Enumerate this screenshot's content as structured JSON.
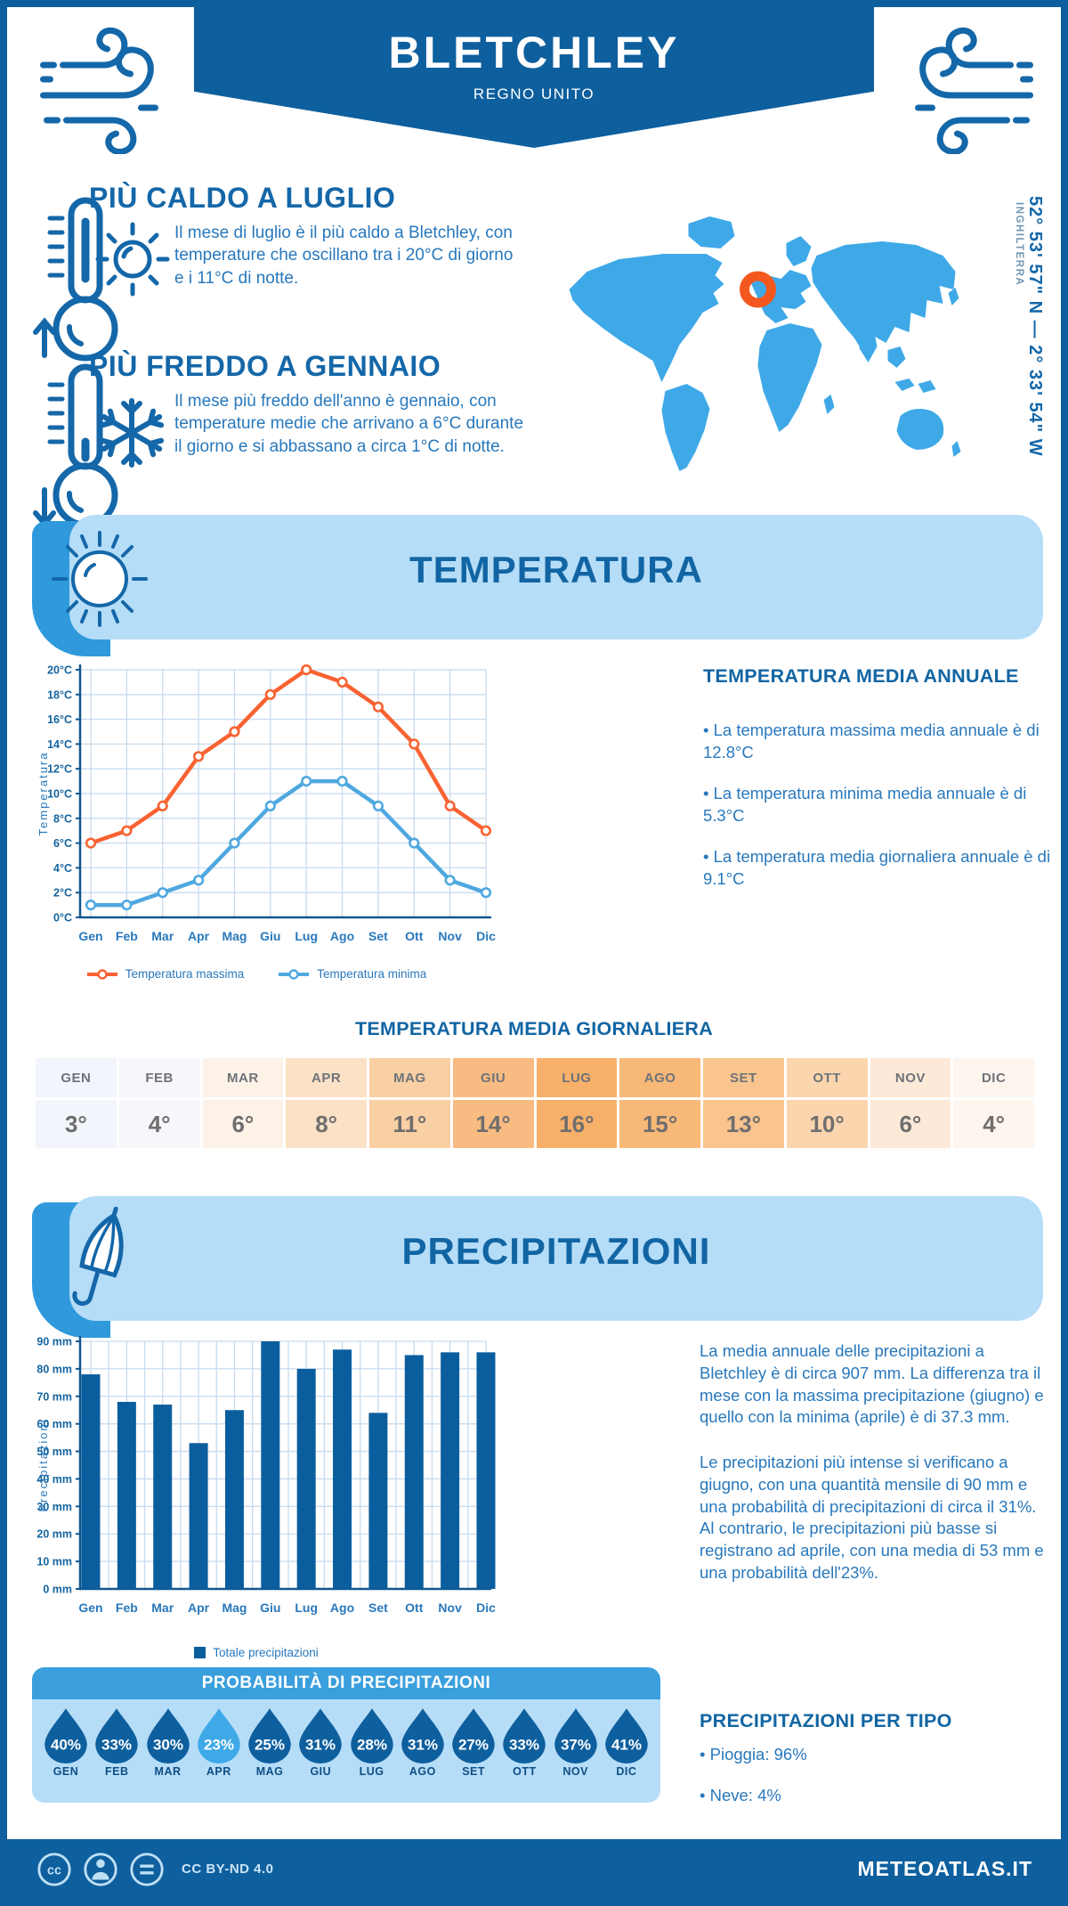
{
  "page": {
    "title": "BLETCHLEY",
    "subtitle": "REGNO UNITO",
    "coordinates": "52° 53' 57\" N — 2° 33' 54\" W",
    "region_label": "INGHILTERRA",
    "footer": {
      "license": "CC BY-ND 4.0",
      "site": "METEOATLAS.IT"
    }
  },
  "colors": {
    "dark_blue": "#0E5F9E",
    "heading_blue": "#1467A8",
    "text_blue": "#2878BC",
    "grid_blue": "#C7DBEE",
    "axis_blue": "#11578F",
    "tick_blue": "#15649F",
    "map_blue": "#3FA9E8",
    "marker_orange": "#F4581F"
  },
  "highlights": {
    "warm": {
      "title": "PIÙ CALDO A LUGLIO",
      "text": "Il mese di luglio è il più caldo a Bletchley, con temperature che oscillano tra i 20°C di giorno e i 11°C di notte."
    },
    "cold": {
      "title": "PIÙ FREDDO A GENNAIO",
      "text": "Il mese più freddo dell'anno è gennaio, con temperature medie che arrivano a 6°C durante il giorno e si abbassano a circa 1°C di notte."
    }
  },
  "temperature_section": {
    "banner_title": "TEMPERATURA",
    "annual": {
      "title": "TEMPERATURA MEDIA ANNUALE",
      "bullets": [
        "La temperatura massima media annuale è di 12.8°C",
        "La temperatura minima media annuale è di 5.3°C",
        "La temperatura media giornaliera annuale è di 9.1°C"
      ]
    },
    "daily_title": "TEMPERATURA MEDIA GIORNALIERA",
    "monthly_avg": {
      "months": [
        "GEN",
        "FEB",
        "MAR",
        "APR",
        "MAG",
        "GIU",
        "LUG",
        "AGO",
        "SET",
        "OTT",
        "NOV",
        "DIC"
      ],
      "values": [
        "3°",
        "4°",
        "6°",
        "8°",
        "11°",
        "14°",
        "16°",
        "15°",
        "13°",
        "10°",
        "6°",
        "4°"
      ],
      "cell_colors": [
        "#F2F5FB",
        "#F7F6FA",
        "#FDF2E8",
        "#FBE2C6",
        "#F9CFA4",
        "#F8BC82",
        "#F7B069",
        "#F8B878",
        "#F9C48E",
        "#FBD5AE",
        "#FCE9D7",
        "#FDF5EE"
      ]
    }
  },
  "precipitation_section": {
    "banner_title": "PRECIPITAZIONI",
    "paragraphs": [
      "La media annuale delle precipitazioni a Bletchley è di circa 907 mm. La differenza tra il mese con la massima precipitazione (giugno) e quello con la minima (aprile) è di 37.3 mm.",
      "Le precipitazioni più intense si verificano a giugno, con una quantità mensile di 90 mm e una probabilità di precipitazioni di circa il 31%. Al contrario, le precipitazioni più basse si registrano ad aprile, con una media di 53 mm e una probabilità dell'23%."
    ],
    "probability": {
      "title": "PROBABILITÀ DI PRECIPITAZIONI",
      "months": [
        "GEN",
        "FEB",
        "MAR",
        "APR",
        "MAG",
        "GIU",
        "LUG",
        "AGO",
        "SET",
        "OTT",
        "NOV",
        "DIC"
      ],
      "values": [
        "40%",
        "33%",
        "30%",
        "23%",
        "25%",
        "31%",
        "28%",
        "31%",
        "27%",
        "33%",
        "37%",
        "41%"
      ],
      "highlight_index": 3,
      "drop_color": "#0E5F9E",
      "highlight_color": "#3FA9E8"
    },
    "types": {
      "title": "PRECIPITAZIONI PER TIPO",
      "bullets": [
        "Pioggia: 96%",
        "Neve: 4%"
      ]
    }
  },
  "chart_data": [
    {
      "type": "line",
      "categories": [
        "Gen",
        "Feb",
        "Mar",
        "Apr",
        "Mag",
        "Giu",
        "Lug",
        "Ago",
        "Set",
        "Ott",
        "Nov",
        "Dic"
      ],
      "series": [
        {
          "name": "Temperatura massima",
          "color": "#F96232",
          "values": [
            6,
            7,
            9,
            13,
            15,
            18,
            20,
            19,
            17,
            14,
            9,
            7
          ]
        },
        {
          "name": "Temperatura minima",
          "color": "#4FA8E0",
          "values": [
            1,
            1,
            2,
            3,
            6,
            9,
            11,
            11,
            9,
            6,
            3,
            2
          ]
        }
      ],
      "ylabel": "Temperatura",
      "ylim": [
        0,
        20
      ],
      "ytick_step": 2,
      "ytick_suffix": "°C",
      "grid": true,
      "legend_position": "bottom"
    },
    {
      "type": "bar",
      "categories": [
        "Gen",
        "Feb",
        "Mar",
        "Apr",
        "Mag",
        "Giu",
        "Lug",
        "Ago",
        "Set",
        "Ott",
        "Nov",
        "Dic"
      ],
      "series": [
        {
          "name": "Totale precipitazioni",
          "color": "#0B5E9D",
          "values": [
            78,
            68,
            67,
            53,
            65,
            90,
            80,
            87,
            64,
            85,
            86,
            86
          ]
        }
      ],
      "ylabel": "Precipitazioni",
      "ylim": [
        0,
        90
      ],
      "ytick_step": 10,
      "ytick_suffix": " mm",
      "grid": true,
      "legend_position": "bottom"
    }
  ]
}
